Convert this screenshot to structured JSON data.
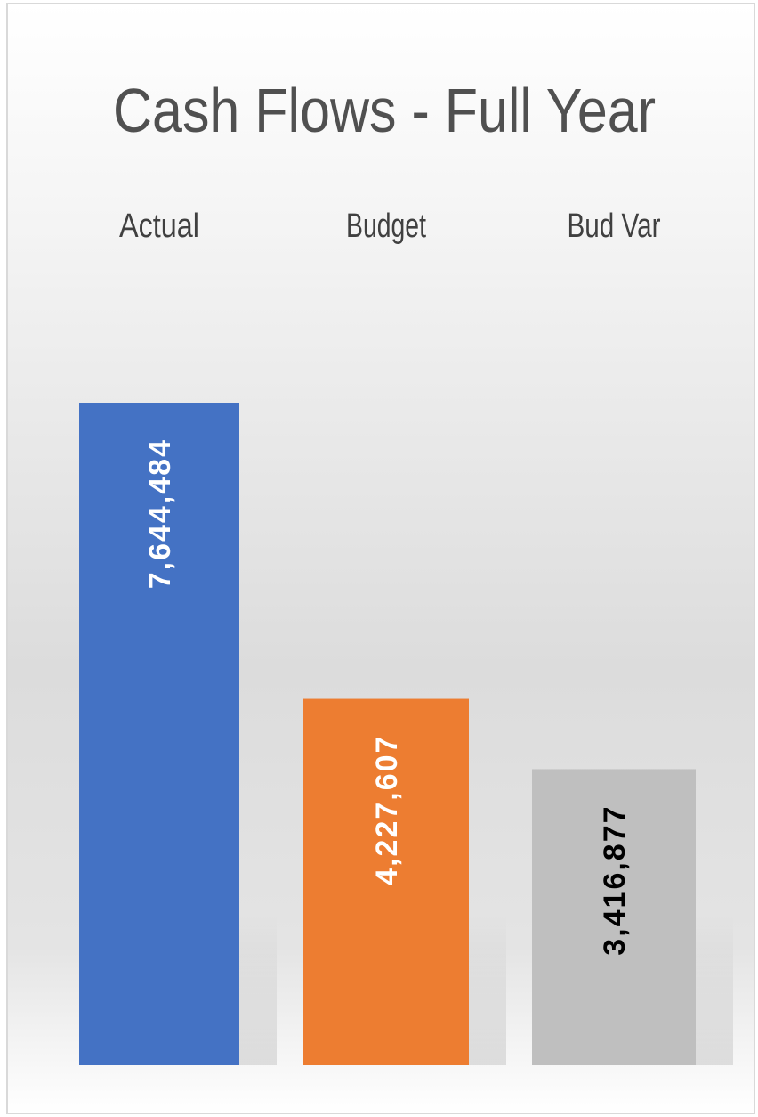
{
  "chart_data": {
    "type": "bar",
    "title": "Cash Flows - Full Year",
    "categories": [
      "Actual",
      "Budget",
      "Bud Var"
    ],
    "values": [
      7644484,
      4227607,
      3416877
    ],
    "value_labels": [
      "7,644,484",
      "4,227,607",
      "3,416,877"
    ],
    "colors": [
      "#4472c4",
      "#ed7d31",
      "#bfbfbf"
    ],
    "label_colors": [
      "#ffffff",
      "#ffffff",
      "#000000"
    ]
  }
}
